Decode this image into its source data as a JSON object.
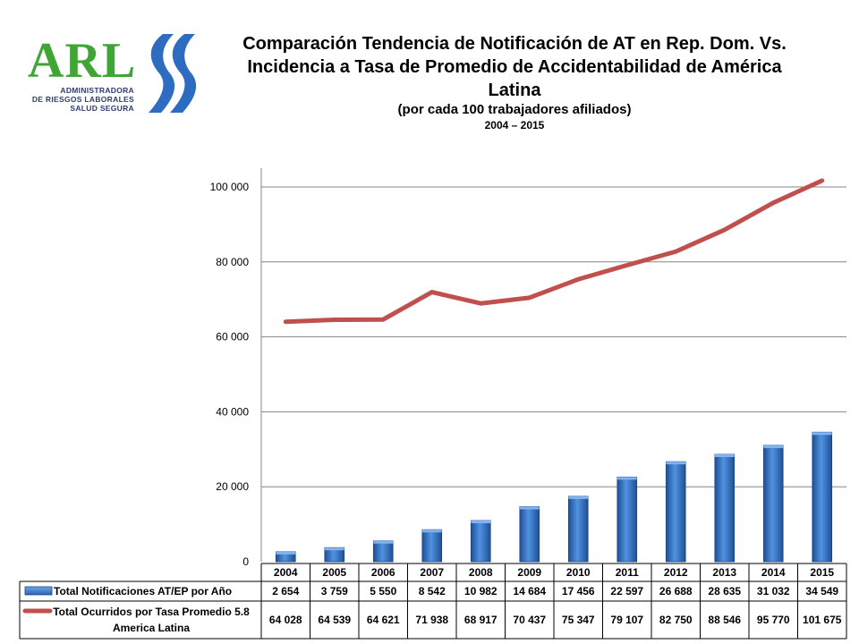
{
  "logo": {
    "text": "ARL",
    "subtitle_lines": [
      "ADMINISTRADORA",
      "DE RIESGOS LABORALES",
      "SALUD SEGURA"
    ]
  },
  "header": {
    "title_line1": "Comparación Tendencia de Notificación de AT en Rep. Dom. Vs.",
    "title_line2": "Incidencia a Tasa de Promedio de Accidentabilidad de América",
    "title_line3": "Latina",
    "subtitle": "(por cada 100 trabajadores afiliados)",
    "period": "2004 – 2015"
  },
  "colors": {
    "bar": "#3d7fd1",
    "bar_dark": "#1f4f95",
    "line": "#c0504d",
    "logo_green": "#3fa535",
    "logo_blue": "#2d3b73"
  },
  "chart_data": {
    "type": "bar",
    "categories": [
      "2004",
      "2005",
      "2006",
      "2007",
      "2008",
      "2009",
      "2010",
      "2011",
      "2012",
      "2013",
      "2014",
      "2015"
    ],
    "ylim": [
      0,
      105000
    ],
    "yticks": [
      {
        "value": 0,
        "label": "0"
      },
      {
        "value": 20000,
        "label": "20 000"
      },
      {
        "value": 40000,
        "label": "40 000"
      },
      {
        "value": 60000,
        "label": "60 000"
      },
      {
        "value": 80000,
        "label": "80 000"
      },
      {
        "value": 100000,
        "label": "100 000"
      }
    ],
    "grid": true,
    "legend": "data-table",
    "series": [
      {
        "name": "Total Notificaciones AT/EP por Año",
        "kind": "bar",
        "values": [
          2654,
          3759,
          5550,
          8542,
          10982,
          14684,
          17456,
          22597,
          26688,
          28635,
          31032,
          34549
        ],
        "labels": [
          "2 654",
          "3 759",
          "5 550",
          "8 542",
          "10 982",
          "14 684",
          "17 456",
          "22 597",
          "26 688",
          "28 635",
          "31 032",
          "34 549"
        ]
      },
      {
        "name": "Total Ocurridos por Tasa Promedio 5.8 America Latina",
        "name_lines": [
          "Total Ocurridos por Tasa Promedio 5.8",
          "America Latina"
        ],
        "kind": "line",
        "values": [
          64028,
          64539,
          64621,
          71938,
          68917,
          70437,
          75347,
          79107,
          82750,
          88546,
          95770,
          101675
        ],
        "labels": [
          "64 028",
          "64 539",
          "64 621",
          "71 938",
          "68 917",
          "70 437",
          "75 347",
          "79 107",
          "82 750",
          "88 546",
          "95 770",
          "101 675"
        ]
      }
    ]
  }
}
